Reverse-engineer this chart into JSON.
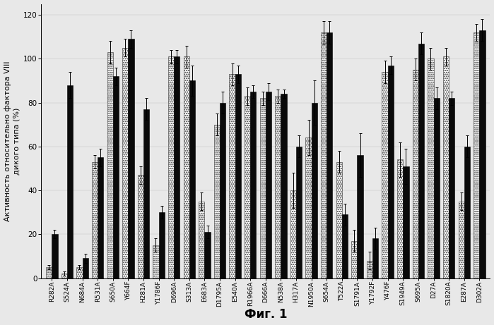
{
  "categories": [
    "R282A",
    "S524A",
    "N684A",
    "R531A",
    "S650A",
    "Y664F",
    "H281A",
    "Y1786F",
    "D696A",
    "S313A",
    "E683A",
    "D1795A",
    "E540A",
    "R1966A",
    "D666A",
    "N538A",
    "H317A",
    "N1950A",
    "S654A",
    "T522A",
    "S1791A",
    "Y1792F",
    "Y476F",
    "S1949A",
    "S695A",
    "D27A",
    "S1820A",
    "E287A",
    "D302A"
  ],
  "black_values": [
    20,
    88,
    9,
    55,
    92,
    109,
    77,
    30,
    101,
    90,
    21,
    80,
    93,
    85,
    85,
    84,
    60,
    80,
    112,
    29,
    56,
    18,
    97,
    51,
    107,
    82,
    82,
    60,
    113
  ],
  "gray_values": [
    5,
    2,
    5,
    53,
    103,
    105,
    47,
    15,
    101,
    101,
    35,
    70,
    93,
    83,
    82,
    83,
    40,
    64,
    112,
    53,
    17,
    8,
    94,
    54,
    95,
    100,
    101,
    35,
    112
  ],
  "black_errors": [
    2,
    6,
    2,
    4,
    4,
    4,
    5,
    3,
    3,
    7,
    3,
    5,
    4,
    3,
    4,
    2,
    5,
    10,
    5,
    5,
    10,
    5,
    4,
    8,
    5,
    5,
    3,
    5,
    5
  ],
  "gray_errors": [
    1,
    1,
    1,
    3,
    5,
    4,
    4,
    3,
    3,
    5,
    4,
    5,
    5,
    4,
    3,
    3,
    8,
    8,
    5,
    5,
    5,
    4,
    5,
    8,
    5,
    5,
    4,
    4,
    4
  ],
  "ylabel_line1": "Активность относительно фактора VIII",
  "ylabel_line2": "дикого типа (%)",
  "xlabel": "Фиг. 1",
  "ylim": [
    0,
    125
  ],
  "yticks": [
    0,
    20,
    40,
    60,
    80,
    100,
    120
  ],
  "bar_width": 0.38,
  "black_color": "#0a0a0a",
  "background_color": "#e8e8e8",
  "axis_fontsize": 8,
  "tick_fontsize": 6.5,
  "xlabel_fontsize": 12
}
